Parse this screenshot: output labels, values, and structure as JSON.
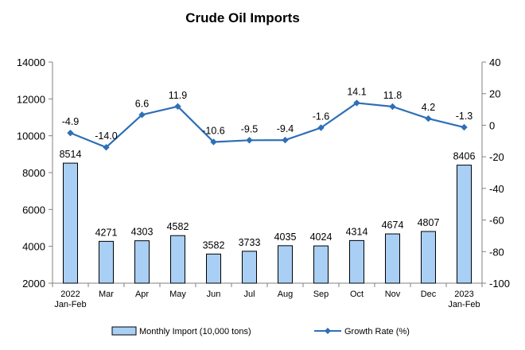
{
  "chart_data": {
    "type": "bar",
    "title": "Crude Oil Imports",
    "categories": [
      [
        "2022",
        "Jan-Feb"
      ],
      [
        "Mar"
      ],
      [
        "Apr"
      ],
      [
        "May"
      ],
      [
        "Jun"
      ],
      [
        "Jul"
      ],
      [
        "Aug"
      ],
      [
        "Sep"
      ],
      [
        "Oct"
      ],
      [
        "Nov"
      ],
      [
        "Dec"
      ],
      [
        "2023",
        "Jan-Feb"
      ]
    ],
    "series": [
      {
        "name": "Monthly Import (10,000 tons)",
        "type": "bar",
        "axis": "left",
        "values": [
          8514,
          4271,
          4303,
          4582,
          3582,
          3733,
          4035,
          4024,
          4314,
          4674,
          4807,
          8406
        ],
        "labels": [
          "8514",
          "4271",
          "4303",
          "4582",
          "3582",
          "3733",
          "4035",
          "4024",
          "4314",
          "4674",
          "4807",
          "8406"
        ]
      },
      {
        "name": "Growth Rate (%)",
        "type": "line",
        "axis": "right",
        "values": [
          -4.9,
          -14.0,
          6.6,
          11.9,
          -10.6,
          -9.5,
          -9.4,
          -1.6,
          14.1,
          11.8,
          4.2,
          -1.3
        ],
        "labels": [
          "-4.9",
          "-14.0",
          "6.6",
          "11.9",
          "-10.6",
          "-9.5",
          "-9.4",
          "-1.6",
          "14.1",
          "11.8",
          "4.2",
          "-1.3"
        ]
      }
    ],
    "y_left": {
      "range": [
        2000,
        14000
      ],
      "ticks": [
        2000,
        4000,
        6000,
        8000,
        10000,
        12000,
        14000
      ],
      "tick_labels": [
        "2000",
        "4000",
        "6000",
        "8000",
        "10000",
        "12000",
        "14000"
      ]
    },
    "y_right": {
      "range": [
        -100,
        40
      ],
      "ticks": [
        -100,
        -80,
        -60,
        -40,
        -20,
        0,
        20,
        40
      ],
      "tick_labels": [
        "-100",
        "-80",
        "-60",
        "-40",
        "-20",
        "0",
        "20",
        "40"
      ]
    },
    "grid": false,
    "legend_position": "bottom",
    "colors": {
      "bar_fill": "#a9cff5",
      "bar_stroke": "#000000",
      "line": "#2e6fb7",
      "axis": "#808080"
    }
  }
}
